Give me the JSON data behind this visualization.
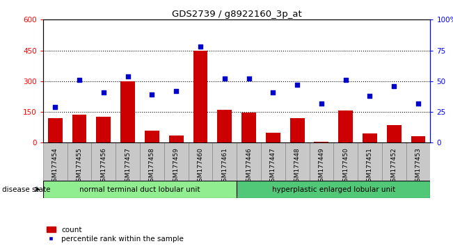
{
  "title": "GDS2739 / g8922160_3p_at",
  "samples": [
    "GSM177454",
    "GSM177455",
    "GSM177456",
    "GSM177457",
    "GSM177458",
    "GSM177459",
    "GSM177460",
    "GSM177461",
    "GSM177446",
    "GSM177447",
    "GSM177448",
    "GSM177449",
    "GSM177450",
    "GSM177451",
    "GSM177452",
    "GSM177453"
  ],
  "counts": [
    120,
    135,
    128,
    300,
    60,
    35,
    450,
    160,
    148,
    50,
    120,
    5,
    158,
    45,
    85,
    30
  ],
  "percentiles": [
    29,
    51,
    41,
    54,
    39,
    42,
    78,
    52,
    52,
    41,
    47,
    32,
    51,
    38,
    46,
    32
  ],
  "group1_count": 8,
  "group2_count": 8,
  "group1_label": "normal terminal duct lobular unit",
  "group2_label": "hyperplastic enlarged lobular unit",
  "disease_state_label": "disease state",
  "ylim_left": [
    0,
    600
  ],
  "ylim_right": [
    0,
    100
  ],
  "yticks_left": [
    0,
    150,
    300,
    450,
    600
  ],
  "yticks_right": [
    0,
    25,
    50,
    75,
    100
  ],
  "bar_color": "#cc0000",
  "dot_color": "#0000cc",
  "group1_color": "#90ee90",
  "group2_color": "#50c878",
  "legend_count_label": "count",
  "legend_pct_label": "percentile rank within the sample"
}
